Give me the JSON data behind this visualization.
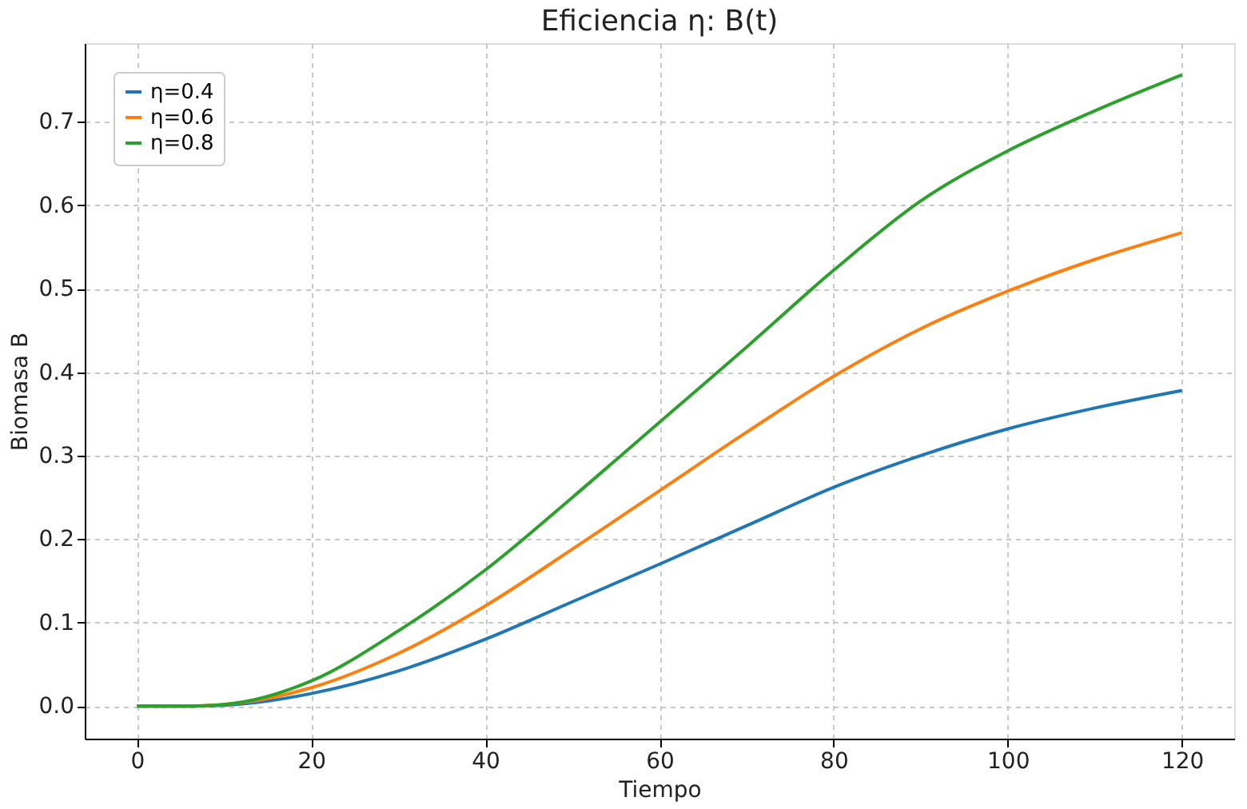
{
  "chart_data": {
    "type": "line",
    "title": "Eficiencia η: B(t)",
    "xlabel": "Tiempo",
    "ylabel": "Biomasa B",
    "x": [
      0,
      5,
      10,
      20,
      30,
      40,
      50,
      60,
      70,
      80,
      90,
      100,
      110,
      120
    ],
    "series": [
      {
        "name": "η=0.4",
        "color": "#1f77b4",
        "values": [
          0,
          0,
          0.001,
          0.015,
          0.042,
          0.08,
          0.125,
          0.17,
          0.216,
          0.262,
          0.3,
          0.332,
          0.357,
          0.378
        ]
      },
      {
        "name": "η=0.6",
        "color": "#ff7f0e",
        "values": [
          0,
          0,
          0.002,
          0.022,
          0.063,
          0.12,
          0.188,
          0.258,
          0.328,
          0.395,
          0.452,
          0.497,
          0.535,
          0.567
        ]
      },
      {
        "name": "η=0.8",
        "color": "#2ca02c",
        "values": [
          0,
          0,
          0.002,
          0.03,
          0.09,
          0.163,
          0.25,
          0.34,
          0.43,
          0.522,
          0.605,
          0.665,
          0.713,
          0.756
        ]
      }
    ],
    "xlim": [
      -6,
      126
    ],
    "ylim": [
      -0.039,
      0.794
    ],
    "xticks": [
      0,
      20,
      40,
      60,
      80,
      100,
      120
    ],
    "yticks": [
      {
        "value": 0,
        "label": "0.0"
      },
      {
        "value": 0.1,
        "label": "0.1"
      },
      {
        "value": 0.2,
        "label": "0.2"
      },
      {
        "value": 0.3,
        "label": "0.3"
      },
      {
        "value": 0.4,
        "label": "0.4"
      },
      {
        "value": 0.5,
        "label": "0.5"
      },
      {
        "value": 0.6,
        "label": "0.6"
      },
      {
        "value": 0.7,
        "label": "0.7"
      }
    ],
    "grid": true,
    "legend": "top left",
    "line_style": "solid",
    "marker": "none"
  }
}
